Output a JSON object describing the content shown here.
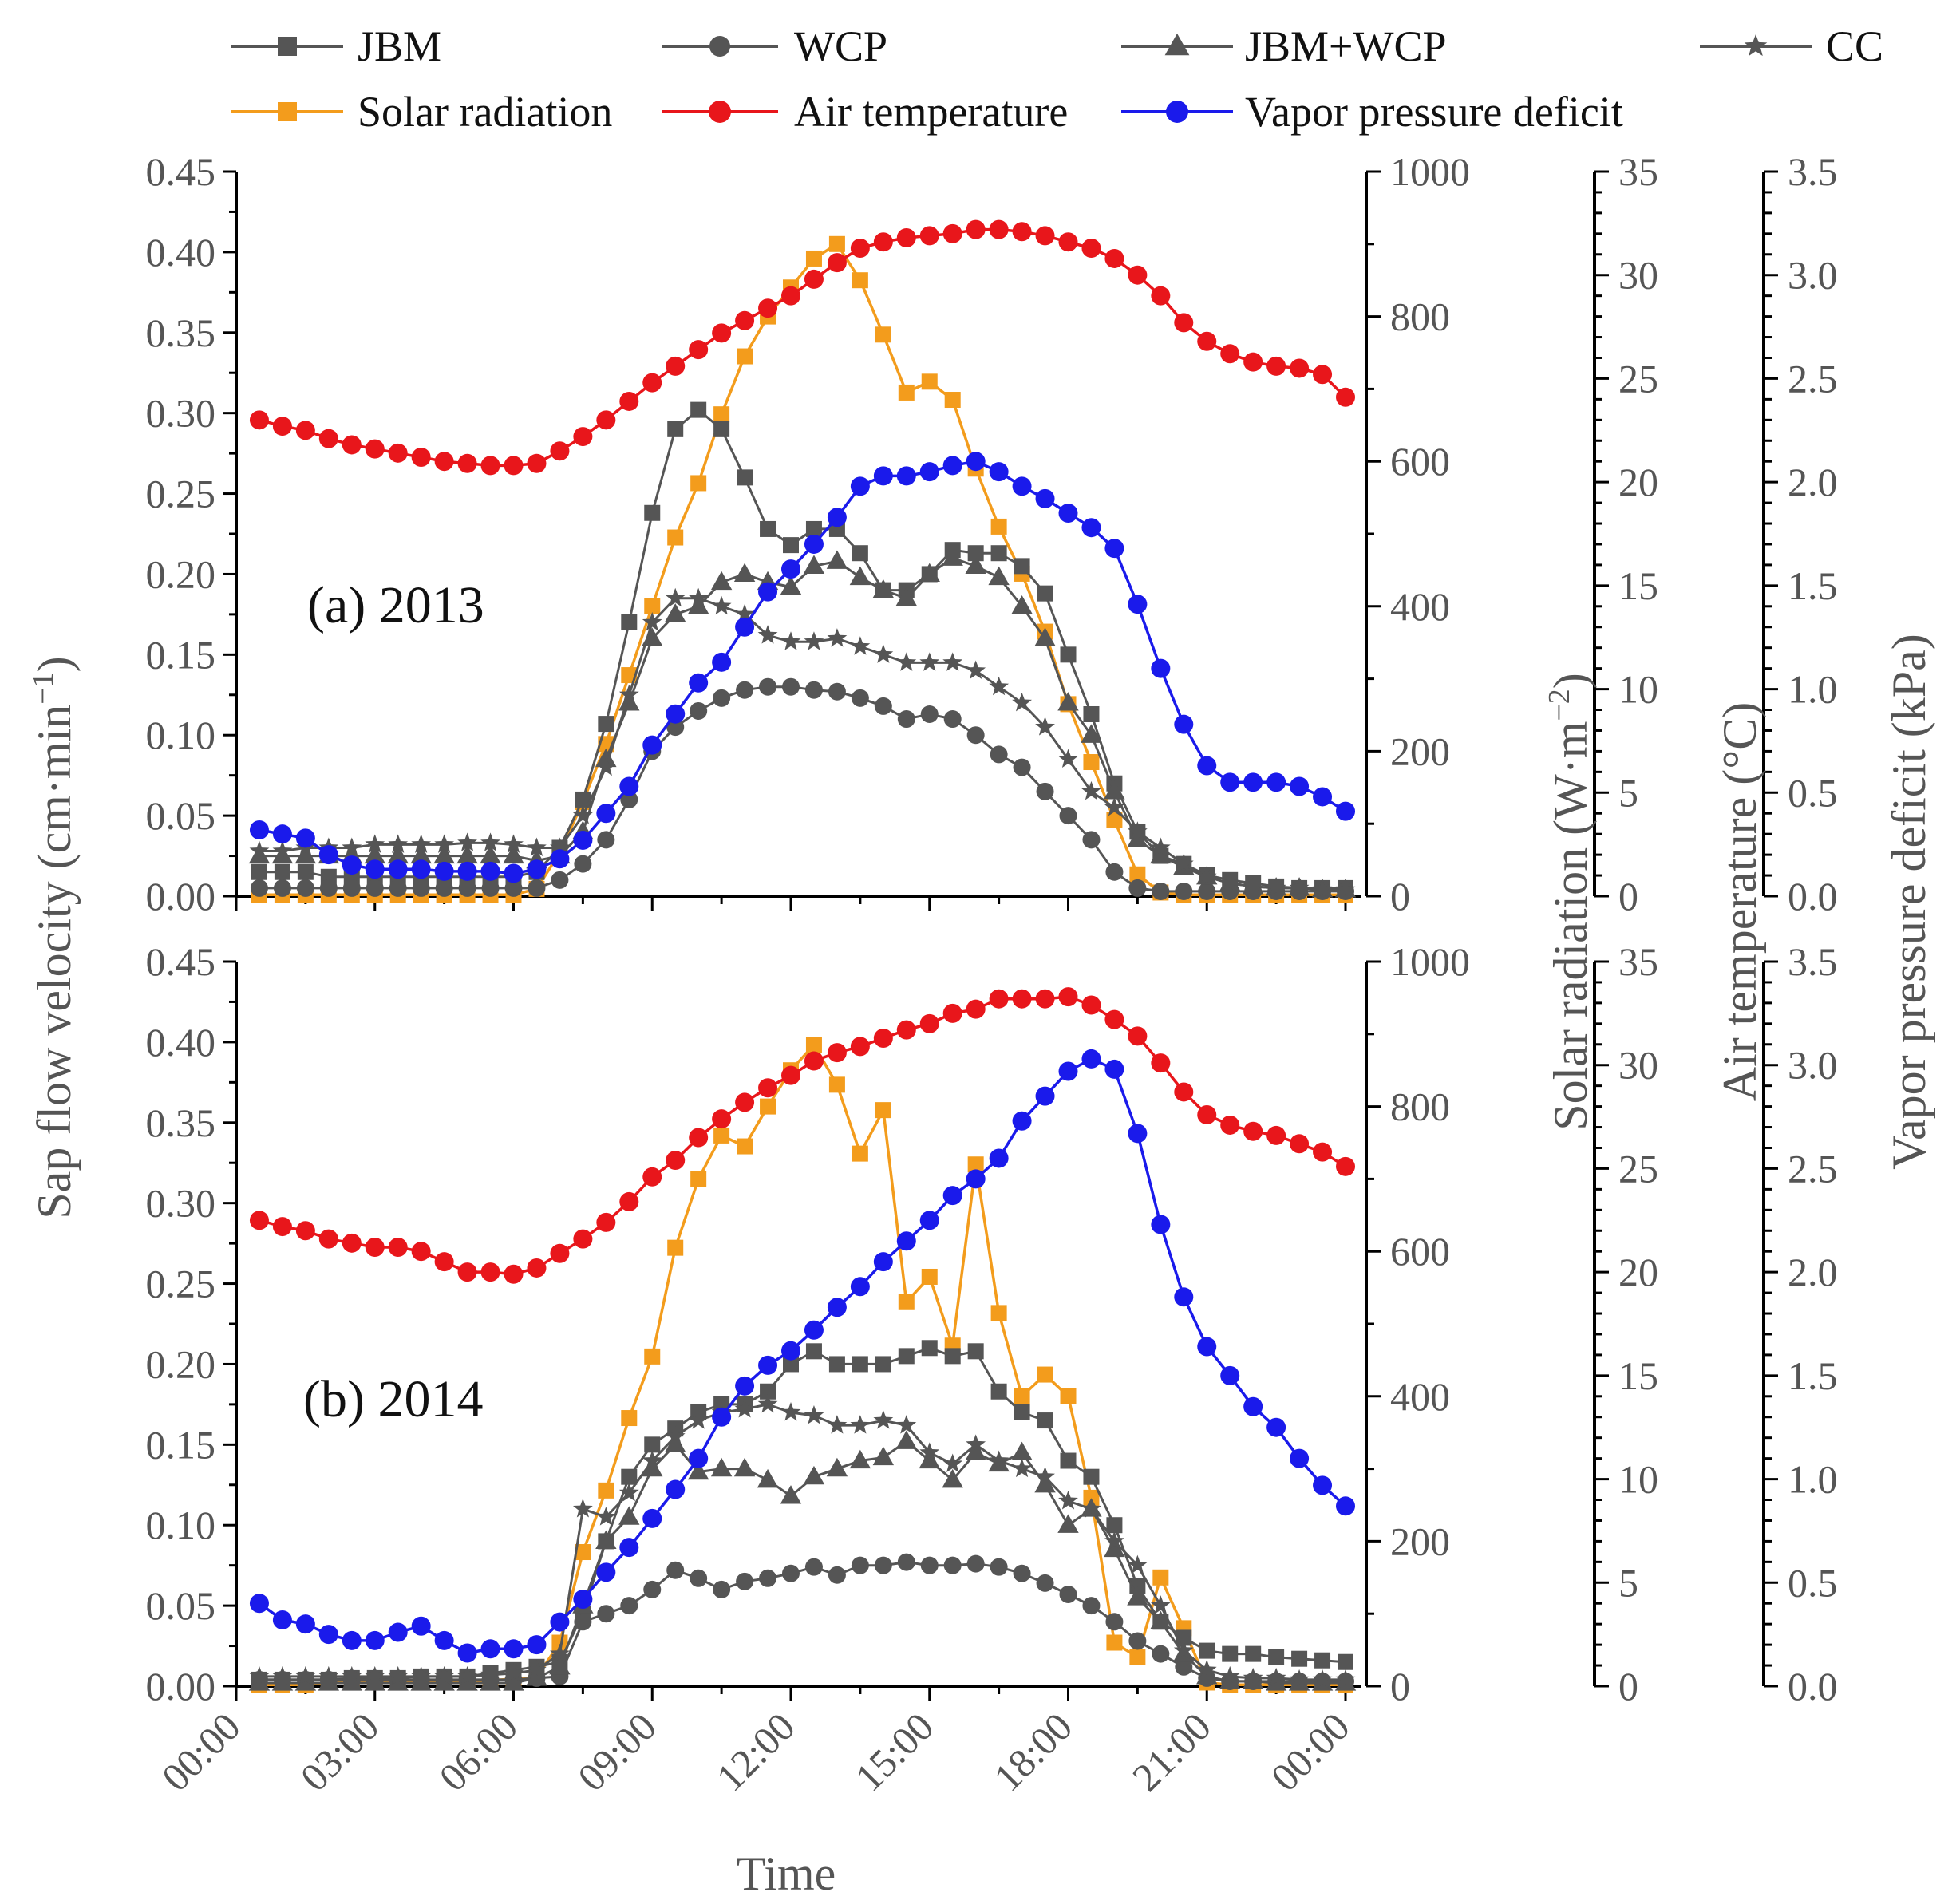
{
  "chart_data": {
    "type": "line",
    "legend": [
      "JBM",
      "WCP",
      "JBM+WCP",
      "CC",
      "Solar radiation",
      "Air temperature",
      "Vapor pressure deficit"
    ],
    "colors": {
      "JBM": "#555555",
      "WCP": "#555555",
      "JBM+WCP": "#555555",
      "CC": "#555555",
      "Solar radiation": "#f39c1c",
      "Air temperature": "#e8161b",
      "Vapor pressure deficit": "#1a1aeb"
    },
    "axes": {
      "xlabel": "Time",
      "x_ticks": [
        "00:00",
        "03:00",
        "06:00",
        "09:00",
        "12:00",
        "15:00",
        "18:00",
        "21:00",
        "00:00"
      ],
      "sap_label": "Sap flow velocity (cm·min",
      "sap_label_sup": "−1",
      "sap_label_end": ")",
      "sap_ticks": [
        "0.00",
        "0.05",
        "0.10",
        "0.15",
        "0.20",
        "0.25",
        "0.30",
        "0.35",
        "0.40",
        "0.45"
      ],
      "sap_range": [
        0,
        0.45
      ],
      "solar_label": "Solar radiation (W·m",
      "solar_label_sup": "−2",
      "solar_label_end": ")",
      "solar_ticks": [
        "0",
        "200",
        "400",
        "600",
        "800",
        "1000"
      ],
      "solar_range": [
        0,
        1000
      ],
      "temp_label": "Air temperature (°C)",
      "temp_ticks": [
        "0",
        "5",
        "10",
        "15",
        "20",
        "25",
        "30",
        "35"
      ],
      "temp_range": [
        0,
        35
      ],
      "vpd_label": "Vapor pressure deficit (kPa)",
      "vpd_ticks": [
        "0.0",
        "0.5",
        "1.0",
        "1.5",
        "2.0",
        "2.5",
        "3.0",
        "3.5"
      ],
      "vpd_range": [
        0,
        3.5
      ]
    },
    "x_hours": [
      0.5,
      1,
      1.5,
      2,
      2.5,
      3,
      3.5,
      4,
      4.5,
      5,
      5.5,
      6,
      6.5,
      7,
      7.5,
      8,
      8.5,
      9,
      9.5,
      10,
      10.5,
      11,
      11.5,
      12,
      12.5,
      13,
      13.5,
      14,
      14.5,
      15,
      15.5,
      16,
      16.5,
      17,
      17.5,
      18,
      18.5,
      19,
      19.5,
      20,
      20.5,
      21,
      21.5,
      22,
      22.5,
      23,
      23.5,
      24
    ],
    "panels": [
      {
        "label": "(a) 2013",
        "series": [
          {
            "name": "JBM",
            "axis": "sap",
            "values": [
              0.015,
              0.015,
              0.015,
              0.012,
              0.012,
              0.012,
              0.012,
              0.012,
              0.012,
              0.012,
              0.012,
              0.012,
              0.015,
              0.03,
              0.06,
              0.107,
              0.17,
              0.238,
              0.29,
              0.302,
              0.29,
              0.26,
              0.228,
              0.218,
              0.228,
              0.228,
              0.213,
              0.19,
              0.19,
              0.2,
              0.215,
              0.213,
              0.213,
              0.205,
              0.188,
              0.15,
              0.113,
              0.07,
              0.04,
              0.025,
              0.02,
              0.013,
              0.01,
              0.008,
              0.006,
              0.005,
              0.005,
              0.005
            ]
          },
          {
            "name": "WCP",
            "axis": "sap",
            "values": [
              0.005,
              0.005,
              0.005,
              0.005,
              0.005,
              0.005,
              0.005,
              0.005,
              0.005,
              0.005,
              0.005,
              0.005,
              0.005,
              0.01,
              0.02,
              0.035,
              0.06,
              0.09,
              0.105,
              0.115,
              0.123,
              0.128,
              0.13,
              0.13,
              0.128,
              0.127,
              0.123,
              0.118,
              0.11,
              0.113,
              0.11,
              0.1,
              0.088,
              0.08,
              0.065,
              0.05,
              0.035,
              0.015,
              0.005,
              0.003,
              0.003,
              0.003,
              0.003,
              0.003,
              0.003,
              0.003,
              0.003,
              0.003
            ]
          },
          {
            "name": "JBM+WCP",
            "axis": "sap",
            "values": [
              0.025,
              0.025,
              0.025,
              0.025,
              0.025,
              0.025,
              0.025,
              0.025,
              0.025,
              0.025,
              0.025,
              0.025,
              0.022,
              0.025,
              0.04,
              0.085,
              0.12,
              0.16,
              0.175,
              0.18,
              0.195,
              0.2,
              0.195,
              0.192,
              0.205,
              0.208,
              0.198,
              0.19,
              0.185,
              0.2,
              0.21,
              0.205,
              0.198,
              0.18,
              0.16,
              0.12,
              0.1,
              0.065,
              0.035,
              0.025,
              0.018,
              0.012,
              0.008,
              0.006,
              0.005,
              0.005,
              0.004,
              0.004
            ]
          },
          {
            "name": "CC",
            "axis": "sap",
            "values": [
              0.028,
              0.028,
              0.03,
              0.03,
              0.03,
              0.032,
              0.032,
              0.032,
              0.032,
              0.033,
              0.033,
              0.032,
              0.03,
              0.03,
              0.05,
              0.08,
              0.125,
              0.17,
              0.185,
              0.185,
              0.18,
              0.175,
              0.162,
              0.158,
              0.158,
              0.16,
              0.155,
              0.15,
              0.145,
              0.145,
              0.145,
              0.14,
              0.13,
              0.12,
              0.105,
              0.085,
              0.065,
              0.055,
              0.04,
              0.03,
              0.02,
              0.012,
              0.008,
              0.006,
              0.005,
              0.005,
              0.004,
              0.004
            ]
          },
          {
            "name": "Solar radiation",
            "axis": "solar",
            "values": [
              2,
              2,
              2,
              2,
              2,
              2,
              2,
              2,
              2,
              2,
              2,
              2,
              10,
              60,
              130,
              210,
              305,
              400,
              495,
              570,
              665,
              745,
              800,
              840,
              880,
              900,
              850,
              775,
              695,
              710,
              685,
              590,
              510,
              445,
              365,
              265,
              185,
              105,
              30,
              5,
              2,
              2,
              2,
              2,
              2,
              2,
              2,
              2
            ]
          },
          {
            "name": "Air temperature",
            "axis": "temp",
            "values": [
              23,
              22.7,
              22.5,
              22.1,
              21.8,
              21.6,
              21.4,
              21.2,
              21,
              20.9,
              20.8,
              20.8,
              20.9,
              21.5,
              22.2,
              23,
              23.9,
              24.8,
              25.6,
              26.4,
              27.2,
              27.8,
              28.4,
              29,
              29.8,
              30.6,
              31.3,
              31.6,
              31.8,
              31.9,
              32,
              32.2,
              32.2,
              32.1,
              31.9,
              31.6,
              31.3,
              30.8,
              30,
              29,
              27.7,
              26.8,
              26.2,
              25.8,
              25.6,
              25.5,
              25.2,
              24.1
            ]
          },
          {
            "name": "Vapor pressure deficit",
            "axis": "vpd",
            "values": [
              0.32,
              0.3,
              0.28,
              0.2,
              0.15,
              0.13,
              0.13,
              0.13,
              0.12,
              0.12,
              0.12,
              0.11,
              0.13,
              0.18,
              0.27,
              0.4,
              0.53,
              0.73,
              0.88,
              1.03,
              1.13,
              1.3,
              1.47,
              1.58,
              1.7,
              1.83,
              1.98,
              2.03,
              2.03,
              2.05,
              2.08,
              2.1,
              2.05,
              1.98,
              1.92,
              1.85,
              1.78,
              1.68,
              1.41,
              1.1,
              0.83,
              0.63,
              0.55,
              0.55,
              0.55,
              0.53,
              0.48,
              0.41
            ]
          }
        ]
      },
      {
        "label": "(b) 2014",
        "series": [
          {
            "name": "JBM",
            "axis": "sap",
            "values": [
              0.004,
              0.004,
              0.004,
              0.004,
              0.005,
              0.005,
              0.005,
              0.006,
              0.006,
              0.006,
              0.008,
              0.01,
              0.012,
              0.015,
              0.045,
              0.09,
              0.13,
              0.15,
              0.16,
              0.17,
              0.175,
              0.175,
              0.183,
              0.2,
              0.208,
              0.2,
              0.2,
              0.2,
              0.205,
              0.21,
              0.205,
              0.208,
              0.183,
              0.17,
              0.165,
              0.14,
              0.13,
              0.1,
              0.062,
              0.04,
              0.03,
              0.022,
              0.02,
              0.02,
              0.018,
              0.017,
              0.016,
              0.015
            ]
          },
          {
            "name": "WCP",
            "axis": "sap",
            "values": [
              0.004,
              0.004,
              0.004,
              0.004,
              0.004,
              0.004,
              0.004,
              0.004,
              0.004,
              0.004,
              0.004,
              0.004,
              0.005,
              0.006,
              0.04,
              0.045,
              0.05,
              0.06,
              0.072,
              0.067,
              0.06,
              0.065,
              0.067,
              0.07,
              0.074,
              0.069,
              0.075,
              0.075,
              0.077,
              0.075,
              0.075,
              0.076,
              0.074,
              0.07,
              0.064,
              0.057,
              0.05,
              0.04,
              0.028,
              0.02,
              0.012,
              0.005,
              0.003,
              0.003,
              0.003,
              0.003,
              0.003,
              0.003
            ]
          },
          {
            "name": "JBM+WCP",
            "axis": "sap",
            "values": [
              0.002,
              0.002,
              0.002,
              0.002,
              0.002,
              0.002,
              0.002,
              0.002,
              0.002,
              0.002,
              0.002,
              0.002,
              0.005,
              0.012,
              0.05,
              0.09,
              0.105,
              0.135,
              0.15,
              0.133,
              0.135,
              0.135,
              0.128,
              0.118,
              0.13,
              0.135,
              0.14,
              0.142,
              0.152,
              0.14,
              0.128,
              0.145,
              0.138,
              0.145,
              0.125,
              0.1,
              0.11,
              0.085,
              0.055,
              0.04,
              0.02,
              0.006,
              0.003,
              0.003,
              0.002,
              0.002,
              0.002,
              0.002
            ]
          },
          {
            "name": "CC",
            "axis": "sap",
            "values": [
              0.006,
              0.006,
              0.006,
              0.006,
              0.006,
              0.006,
              0.006,
              0.006,
              0.006,
              0.006,
              0.007,
              0.008,
              0.01,
              0.02,
              0.11,
              0.105,
              0.12,
              0.14,
              0.155,
              0.165,
              0.17,
              0.172,
              0.175,
              0.17,
              0.168,
              0.162,
              0.162,
              0.165,
              0.162,
              0.145,
              0.138,
              0.15,
              0.14,
              0.135,
              0.13,
              0.115,
              0.11,
              0.09,
              0.075,
              0.05,
              0.022,
              0.01,
              0.006,
              0.005,
              0.005,
              0.004,
              0.004,
              0.004
            ]
          },
          {
            "name": "Solar radiation",
            "axis": "solar",
            "values": [
              2,
              2,
              2,
              5,
              5,
              5,
              5,
              5,
              5,
              5,
              8,
              10,
              12,
              60,
              185,
              270,
              370,
              455,
              605,
              700,
              760,
              745,
              800,
              850,
              885,
              830,
              735,
              795,
              530,
              565,
              470,
              720,
              515,
              400,
              430,
              400,
              260,
              60,
              40,
              150,
              80,
              5,
              2,
              2,
              2,
              2,
              2,
              2
            ]
          },
          {
            "name": "Air temperature",
            "axis": "temp",
            "values": [
              22.5,
              22.2,
              22,
              21.6,
              21.4,
              21.2,
              21.2,
              21,
              20.5,
              20,
              20,
              19.9,
              20.2,
              20.9,
              21.6,
              22.4,
              23.4,
              24.6,
              25.4,
              26.5,
              27.4,
              28.2,
              28.9,
              29.5,
              30.2,
              30.6,
              30.9,
              31.3,
              31.7,
              32,
              32.5,
              32.7,
              33.2,
              33.2,
              33.2,
              33.3,
              32.9,
              32.2,
              31.4,
              30.1,
              28.7,
              27.6,
              27.1,
              26.8,
              26.6,
              26.2,
              25.8,
              25.1
            ]
          },
          {
            "name": "Vapor pressure deficit",
            "axis": "vpd",
            "values": [
              0.4,
              0.32,
              0.3,
              0.25,
              0.22,
              0.22,
              0.26,
              0.29,
              0.22,
              0.16,
              0.18,
              0.18,
              0.2,
              0.31,
              0.42,
              0.55,
              0.67,
              0.81,
              0.95,
              1.1,
              1.3,
              1.45,
              1.55,
              1.62,
              1.72,
              1.83,
              1.93,
              2.05,
              2.15,
              2.25,
              2.37,
              2.45,
              2.55,
              2.73,
              2.85,
              2.97,
              3.03,
              2.98,
              2.67,
              2.23,
              1.88,
              1.64,
              1.5,
              1.35,
              1.25,
              1.1,
              0.97,
              0.87
            ]
          }
        ]
      }
    ]
  }
}
